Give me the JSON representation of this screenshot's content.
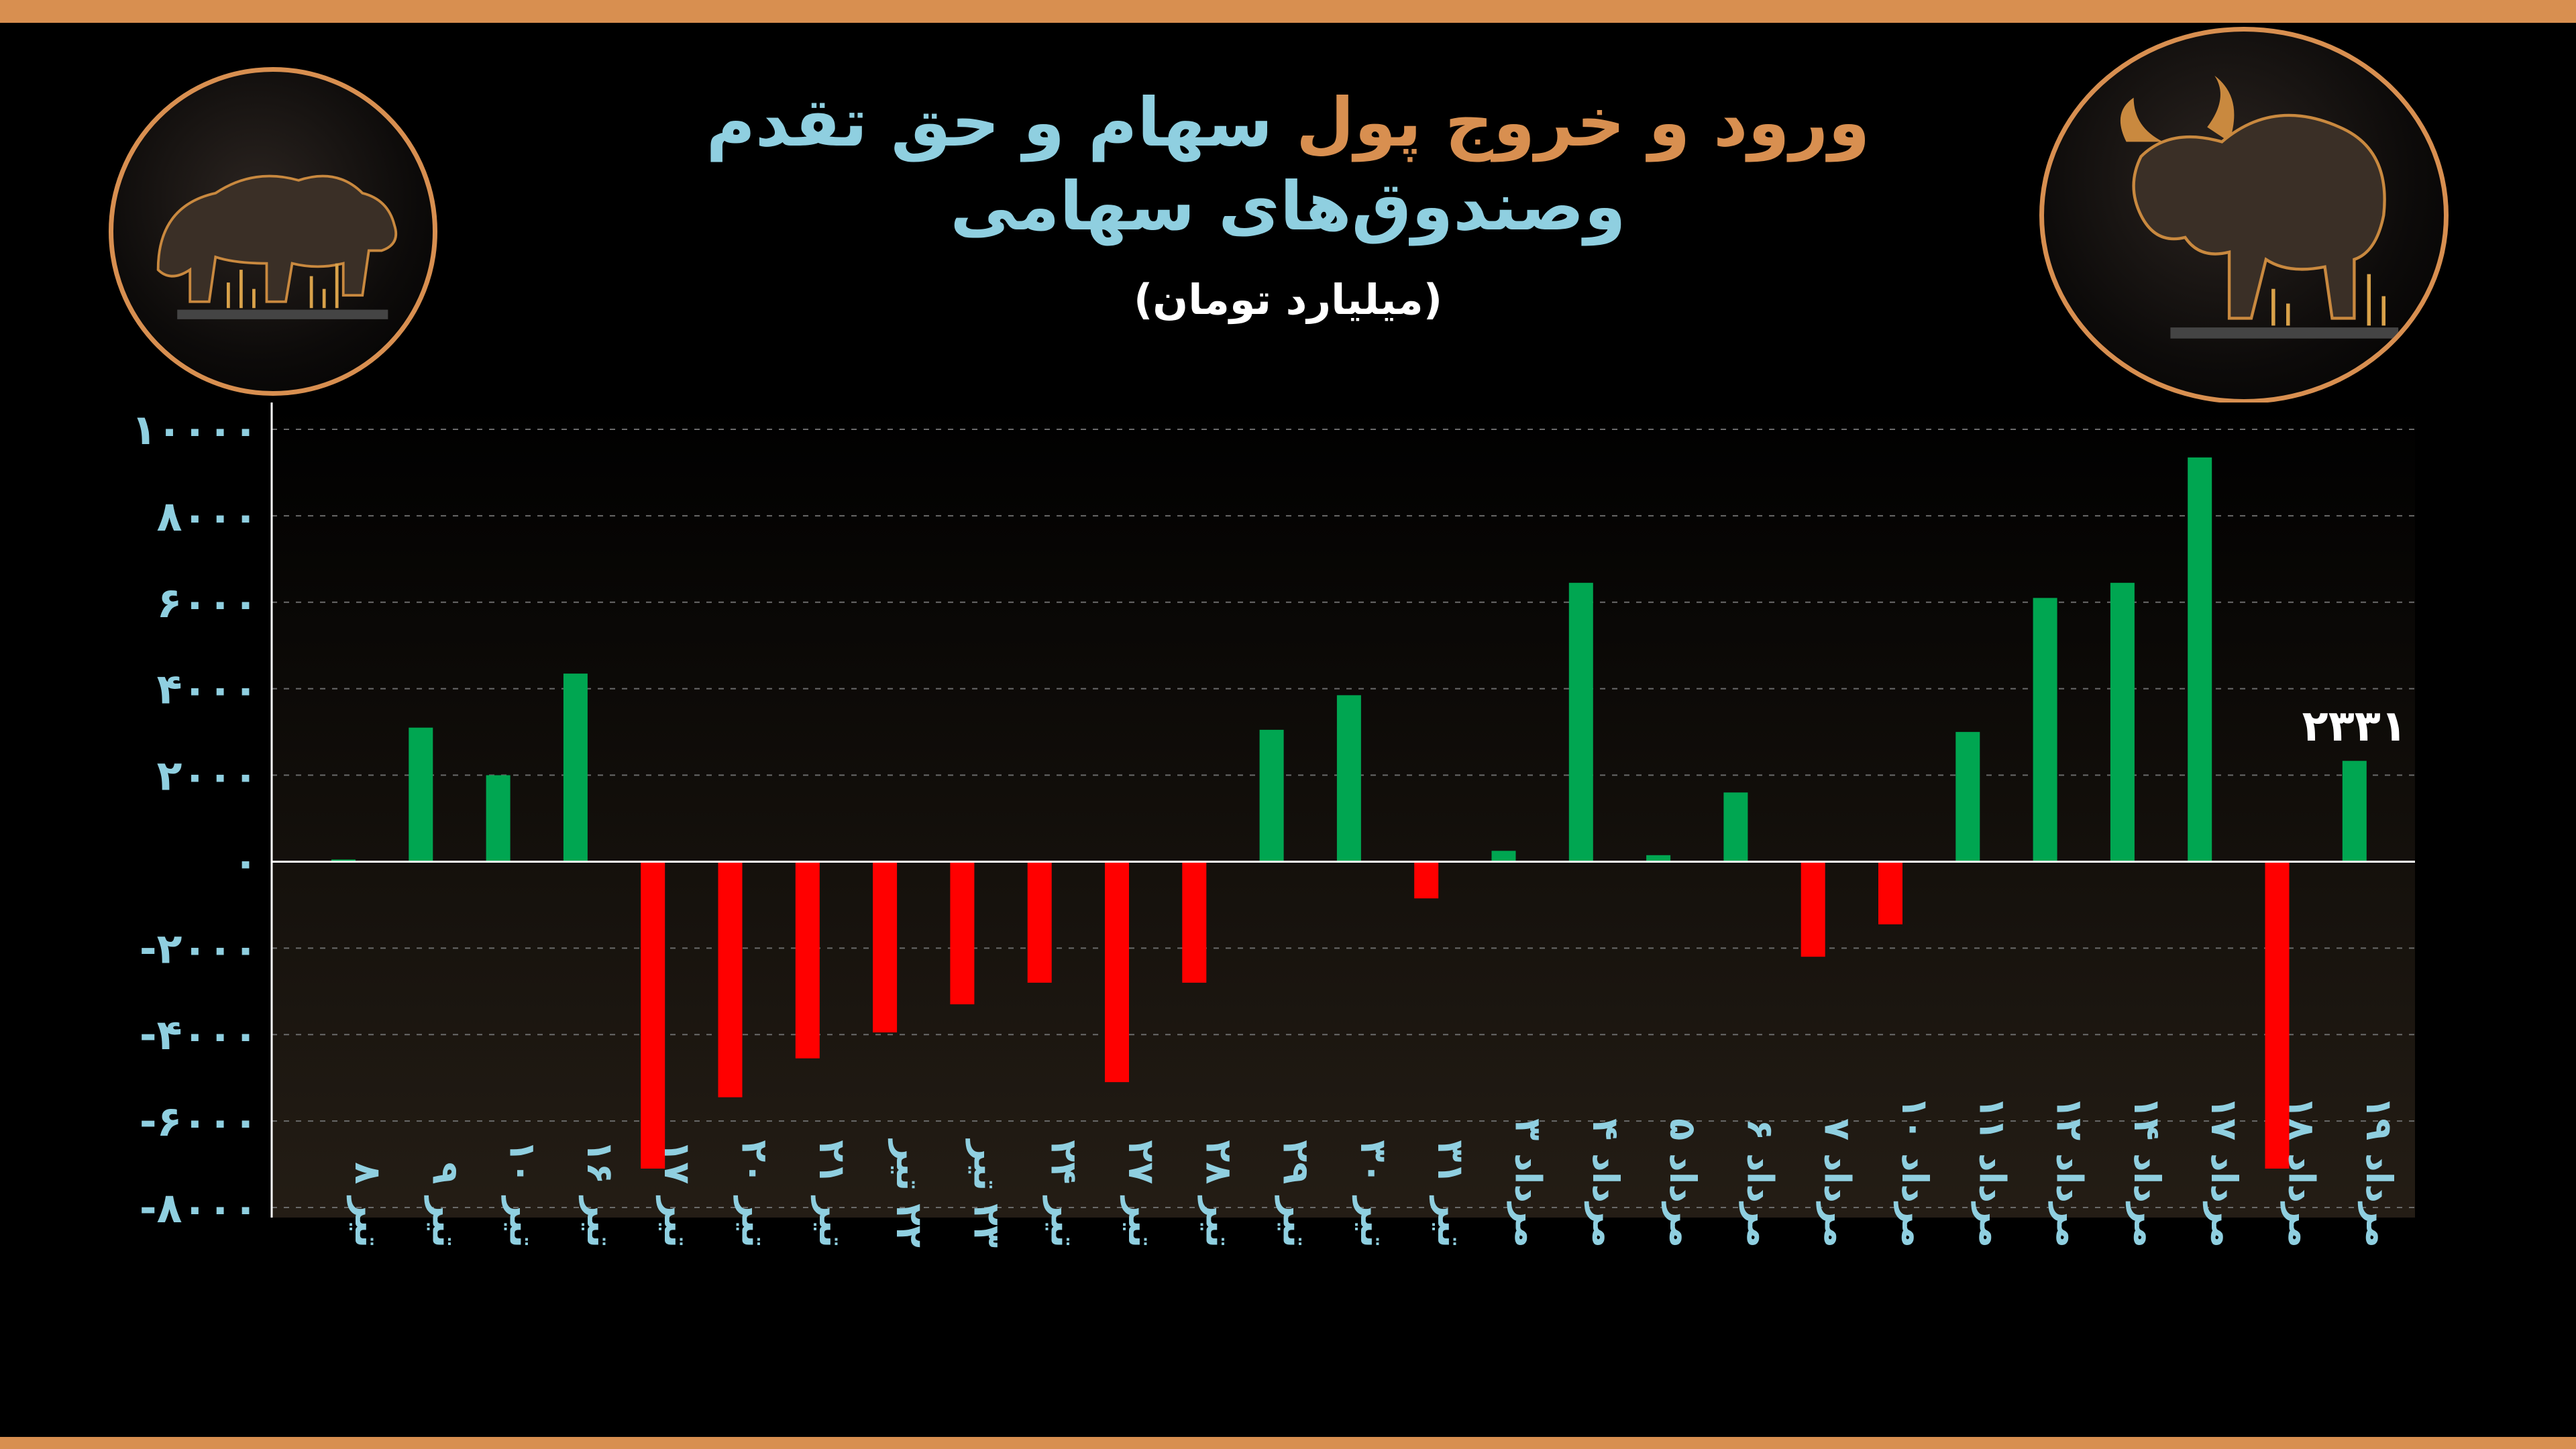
{
  "title": {
    "part1": "ورود و خروج پول",
    "part2": "سهام و حق تقدم",
    "line2": "وصندوق‌های سهامی"
  },
  "subtitle": "(میلیارد تومان)",
  "colors": {
    "positive": "#00a651",
    "negative": "#ff0000",
    "accent": "#d88f50",
    "axis_text": "#8fcfe0"
  },
  "icons": {
    "left": "bear-icon",
    "right": "bull-icon"
  },
  "chart_data": {
    "type": "bar",
    "categories": [
      "تیر ۸",
      "تیر ۹",
      "تیر ۱۰",
      "تیر ۱۶",
      "تیر ۱۷",
      "تیر ۲۰",
      "تیر ۲۱",
      "۲۲ تیر",
      "۲۳ تیر",
      "تیر ۲۴",
      "تیر ۲۷",
      "تیر ۲۸",
      "تیر ۲۹",
      "تیر ۳۰",
      "تیر ۳۱",
      "مرداد ۳",
      "مرداد ۴",
      "مرداد ۵",
      "مرداد ۶",
      "مرداد ۷",
      "مرداد ۱۰",
      "مرداد ۱۱",
      "مرداد ۱۲",
      "مرداد ۱۴",
      "مرداد ۱۷",
      "مرداد ۱۸",
      "مرداد ۱۹"
    ],
    "values": [
      50,
      3100,
      2000,
      4350,
      -7100,
      -5450,
      -4550,
      -3950,
      -3300,
      -2800,
      -5100,
      -2800,
      3050,
      3850,
      -850,
      250,
      6450,
      150,
      1600,
      -2200,
      -1450,
      3000,
      6100,
      6450,
      9350,
      -7100,
      2331
    ],
    "ylim": [
      -8000,
      10000
    ],
    "yticks": [
      10000,
      8000,
      6000,
      4000,
      2000,
      0,
      -2000,
      -4000,
      -6000,
      -8000
    ],
    "ytick_labels": [
      "۱۰۰۰۰",
      "۸۰۰۰",
      "۶۰۰۰",
      "۴۰۰۰",
      "۲۰۰۰",
      "۰",
      "-۲۰۰۰",
      "-۴۰۰۰",
      "-۶۰۰۰",
      "-۸۰۰۰"
    ],
    "annotations": [
      {
        "category": "مرداد ۱۹",
        "text": "۲۳۳۱"
      }
    ],
    "grid": true
  }
}
